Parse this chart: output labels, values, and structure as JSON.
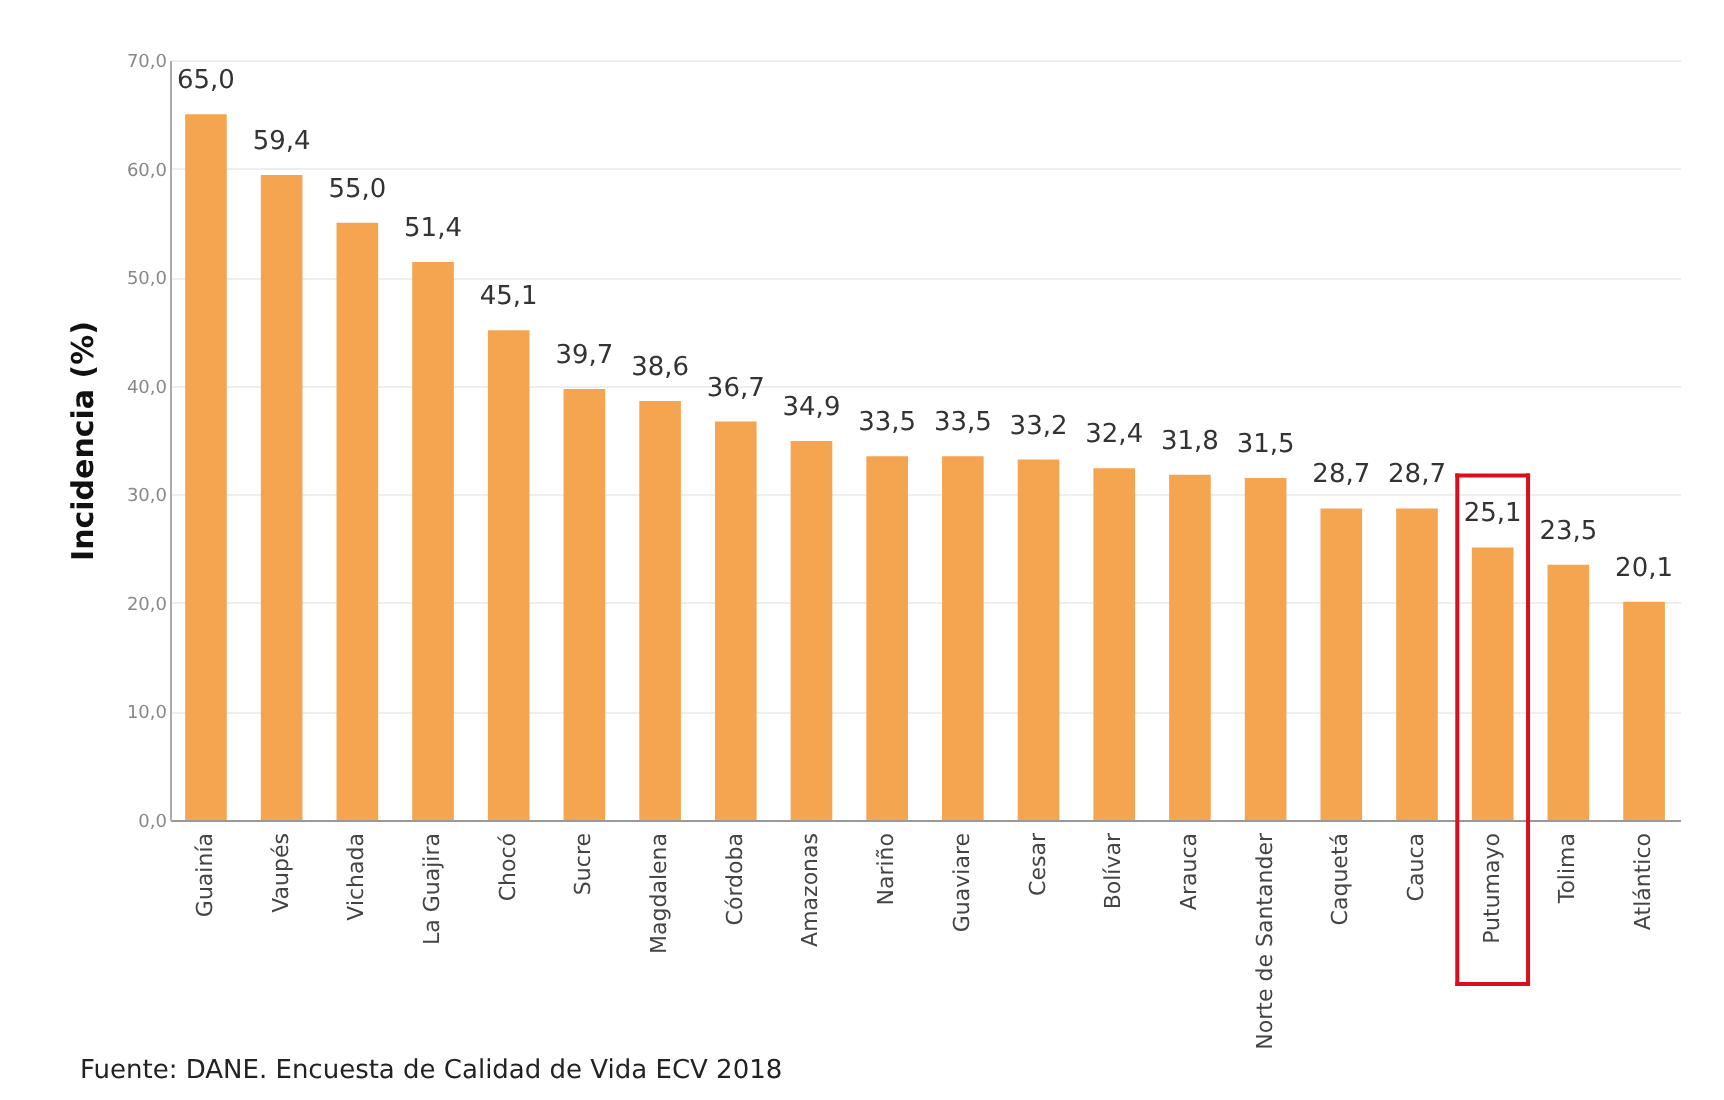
{
  "chart_data": {
    "type": "bar",
    "ylabel": "Incidencia (%)",
    "categories": [
      "Guainía",
      "Vaupés",
      "Vichada",
      "La Guajira",
      "Chocó",
      "Sucre",
      "Magdalena",
      "Córdoba",
      "Amazonas",
      "Nariño",
      "Guaviare",
      "Cesar",
      "Bolívar",
      "Arauca",
      "Norte de Santander",
      "Caquetá",
      "Cauca",
      "Putumayo",
      "Tolima",
      "Atlántico"
    ],
    "values": [
      65.0,
      59.4,
      55.0,
      51.4,
      45.1,
      39.7,
      38.6,
      36.7,
      34.9,
      33.5,
      33.5,
      33.2,
      32.4,
      31.8,
      31.5,
      28.7,
      28.7,
      25.1,
      23.5,
      20.1
    ],
    "value_labels": [
      "65,0",
      "59,4",
      "55,0",
      "51,4",
      "45,1",
      "39,7",
      "38,6",
      "36,7",
      "34,9",
      "33,5",
      "33,5",
      "33,2",
      "32,4",
      "31,8",
      "31,5",
      "28,7",
      "28,7",
      "25,1",
      "23,5",
      "20,1"
    ],
    "color": "#f5a54f",
    "ylim": [
      0,
      70
    ],
    "yticks": [
      {
        "value": 0,
        "label": "0,0"
      },
      {
        "value": 10,
        "label": "10,0"
      },
      {
        "value": 20,
        "label": "20,0"
      },
      {
        "value": 30,
        "label": "30,0"
      },
      {
        "value": 40,
        "label": "40,0"
      },
      {
        "value": 50,
        "label": "50,0"
      },
      {
        "value": 60,
        "label": "60,0"
      },
      {
        "value": 70,
        "label": "70,0"
      }
    ],
    "grid": "y",
    "annotations": [
      "Fuente: DANE. Encuesta de Calidad de Vida ECV 2018"
    ]
  }
}
